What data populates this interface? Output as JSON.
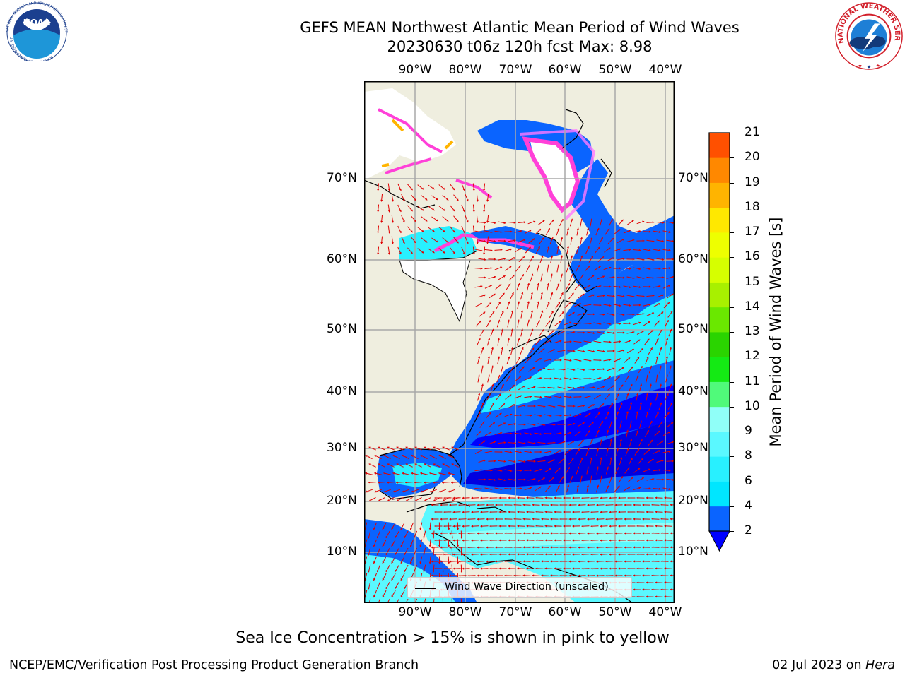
{
  "header": {
    "title_line1": "GEFS MEAN Northwest Atlantic Mean Period of Wind Waves",
    "title_line2": "20230630 t06z 120h fcst   Max: 8.98"
  },
  "axes": {
    "lon_ticks": [
      "90°W",
      "80°W",
      "70°W",
      "60°W",
      "50°W",
      "40°W"
    ],
    "lat_ticks": [
      "70°N",
      "60°N",
      "50°N",
      "40°N",
      "30°N",
      "20°N",
      "10°N"
    ]
  },
  "legend": {
    "label": "Wind Wave Direction (unscaled)"
  },
  "colorbar": {
    "label": "Mean Period of Wind Waves [s]",
    "ticks": [
      "2",
      "4",
      "6",
      "8",
      "9",
      "10",
      "11",
      "12",
      "13",
      "14",
      "15",
      "16",
      "17",
      "18",
      "19",
      "20",
      "21"
    ],
    "colors": [
      "#0a64ff",
      "#00e6ff",
      "#28f0ff",
      "#5af8ff",
      "#90fff8",
      "#50fa7a",
      "#14ea14",
      "#2ad400",
      "#6ae800",
      "#a8f000",
      "#d6ff00",
      "#eeff00",
      "#ffe800",
      "#ffb400",
      "#ff8800",
      "#ff5000",
      "#ff2800",
      "#ff0000"
    ],
    "under_color": "#0000ff"
  },
  "note": "Sea Ice Concentration > 15% is shown in pink to yellow",
  "footer": {
    "left": "NCEP/EMC/Verification Post Processing Product Generation Branch",
    "right_prefix": "02 Jul 2023 on ",
    "right_host": "Hera"
  },
  "logos": {
    "noaa_text": "NOAA",
    "noaa_ring_text": "NATIONAL OCEANIC AND ATMOSPHERIC ADMINISTRATION",
    "noaa_ring_bottom": "U.S. DEPARTMENT OF COMMERCE",
    "nws_ring_text": "NATIONAL WEATHER SERVICE"
  }
}
